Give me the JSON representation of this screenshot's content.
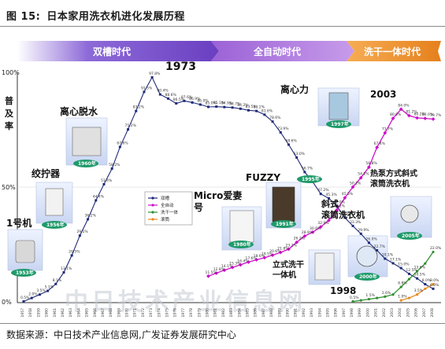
{
  "title": {
    "label": "图 15:",
    "text": "日本家用洗衣机进化发展历程"
  },
  "source": "数据来源：中日技术产业信息网,广发证券发展研究中心",
  "eras": [
    {
      "label": "双槽时代",
      "color": "#7b56c8"
    },
    {
      "label": "全自动时代",
      "color": "#a371e0"
    },
    {
      "label": "洗干一体时代",
      "color": "#f08e2e"
    }
  ],
  "y_axis": {
    "ticks": [
      "0%",
      "50%",
      "100%"
    ],
    "label": [
      "普",
      "及",
      "率"
    ]
  },
  "annotations": {
    "y1973": "1973",
    "y2003": "2003",
    "y1998": "1998",
    "lixinli": "离心力",
    "lixintuoshui": "离心脱水",
    "jiaoningqi": "绞拧器",
    "yihaoji": "1号机",
    "micro": [
      "Micro爱妻",
      "号"
    ],
    "fuzzy": "FUZZY",
    "xieshi": [
      "斜式",
      "滚筒洗衣机"
    ],
    "rebeng": [
      "热泵方式斜式",
      "滚筒洗衣机"
    ],
    "lishi": [
      "立式洗干",
      "一体机"
    ]
  },
  "badges": {
    "b1": "1953年",
    "b2": "1956年",
    "b3": "1960年",
    "b4": "1980年",
    "b5": "1991年",
    "b6": "1995年",
    "b7": "1997年",
    "b8": "2000年",
    "b9": "2005年"
  },
  "watermark": "中日技术产业信息网",
  "colors": {
    "twin": "#1e2a78",
    "auto": "#cc10c8",
    "washdry": "#2f8f2f",
    "drum": "#e88a1c"
  },
  "chart_data": {
    "type": "line",
    "title": "日本家用洗衣机进化发展历程",
    "ylabel": "普及率",
    "ylim": [
      0,
      100
    ],
    "y_unit": "%",
    "x": [
      1957,
      1958,
      1959,
      1960,
      1961,
      1962,
      1963,
      1964,
      1965,
      1966,
      1967,
      1968,
      1969,
      1970,
      1971,
      1972,
      1973,
      1974,
      1975,
      1976,
      1977,
      1978,
      1979,
      1980,
      1981,
      1982,
      1983,
      1984,
      1985,
      1986,
      1987,
      1988,
      1989,
      1990,
      1991,
      1992,
      1993,
      1994,
      1995,
      1996,
      1997,
      1998,
      1999,
      2000,
      2001,
      2002,
      2003,
      2004,
      2005,
      2006,
      2007,
      2008
    ],
    "series": [
      {
        "name": "双槽",
        "values": [
          0.5,
          2.0,
          3.5,
          5.1,
          8.1,
          13.1,
          20.5,
          29.1,
          36.2,
          44.4,
          51.4,
          58.2,
          67.6,
          75.2,
          83.2,
          91.5,
          97.8,
          90.4,
          88.6,
          86.5,
          87.6,
          86.9,
          86.0,
          85.0,
          85.1,
          84.9,
          84.7,
          84.2,
          83.5,
          83.2,
          81.6,
          78.6,
          73.9,
          68.6,
          63.0,
          56.7,
          52.4,
          47.2,
          45.3,
          42.0,
          36.9,
          33.3,
          29.9,
          26.0,
          22.7,
          19.1,
          17.1,
          15.0,
          12.5,
          10.5,
          8.0,
          6.0
        ]
      },
      {
        "name": "全自动",
        "values": [
          null,
          null,
          null,
          null,
          null,
          null,
          null,
          null,
          null,
          null,
          null,
          null,
          null,
          null,
          null,
          null,
          null,
          null,
          null,
          null,
          null,
          null,
          null,
          11.5,
          12.8,
          14.1,
          15.3,
          16.4,
          17.6,
          18.6,
          19.5,
          20.6,
          21.8,
          23.2,
          26.2,
          28.9,
          30.6,
          32.9,
          35.7,
          40.2,
          45.5,
          50.2,
          54.2,
          58.8,
          67.4,
          73.7,
          80.0,
          84.0,
          81.2,
          80.2,
          80.0,
          79.7
        ]
      },
      {
        "name": "洗干一体",
        "values": [
          null,
          null,
          null,
          null,
          null,
          null,
          null,
          null,
          null,
          null,
          null,
          null,
          null,
          null,
          null,
          null,
          null,
          null,
          null,
          null,
          null,
          null,
          null,
          null,
          null,
          null,
          null,
          null,
          null,
          null,
          null,
          null,
          null,
          null,
          null,
          null,
          null,
          null,
          null,
          null,
          null,
          0.5,
          1.0,
          1.5,
          2.0,
          2.6,
          3.5,
          6.8,
          10.2,
          13.6,
          17.0,
          22.0
        ]
      },
      {
        "name": "滚筒",
        "values": [
          null,
          null,
          null,
          null,
          null,
          null,
          null,
          null,
          null,
          null,
          null,
          null,
          null,
          null,
          null,
          null,
          null,
          null,
          null,
          null,
          null,
          null,
          null,
          null,
          null,
          null,
          null,
          null,
          null,
          null,
          null,
          null,
          null,
          null,
          null,
          null,
          null,
          null,
          null,
          null,
          null,
          null,
          null,
          null,
          null,
          null,
          null,
          1.0,
          2.0,
          3.5,
          6.0,
          8.0
        ]
      }
    ],
    "legend": {
      "position": "center",
      "entries": [
        "双槽",
        "全自动",
        "洗干一体",
        "滚筒"
      ]
    }
  }
}
